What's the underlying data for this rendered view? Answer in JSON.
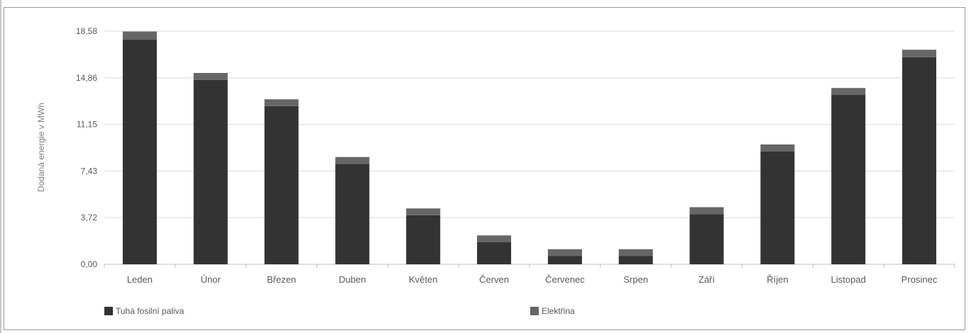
{
  "chart_data": {
    "type": "bar",
    "stacked": true,
    "ylabel": "Dodaná energie v MWh",
    "ylim": [
      0,
      18.58
    ],
    "yticks": [
      "0,00",
      "3,72",
      "7,43",
      "11,15",
      "14,86",
      "18,58"
    ],
    "ytick_values": [
      0,
      3.72,
      7.43,
      11.15,
      14.86,
      18.58
    ],
    "grid": true,
    "legend_position": "bottom",
    "categories": [
      "Leden",
      "Únor",
      "Březen",
      "Duben",
      "Květen",
      "Červen",
      "Červenec",
      "Srpen",
      "Září",
      "Říjen",
      "Listopad",
      "Prosinec"
    ],
    "series": [
      {
        "name": "Tuhá fosilní paliva",
        "color": "#333333",
        "values": [
          17.9,
          14.7,
          12.6,
          8.0,
          3.9,
          1.75,
          0.65,
          0.65,
          4.0,
          9.0,
          13.5,
          16.5
        ]
      },
      {
        "name": "Elektřina",
        "color": "#666666",
        "values": [
          0.65,
          0.55,
          0.55,
          0.55,
          0.55,
          0.55,
          0.55,
          0.55,
          0.55,
          0.55,
          0.55,
          0.6
        ]
      }
    ]
  }
}
